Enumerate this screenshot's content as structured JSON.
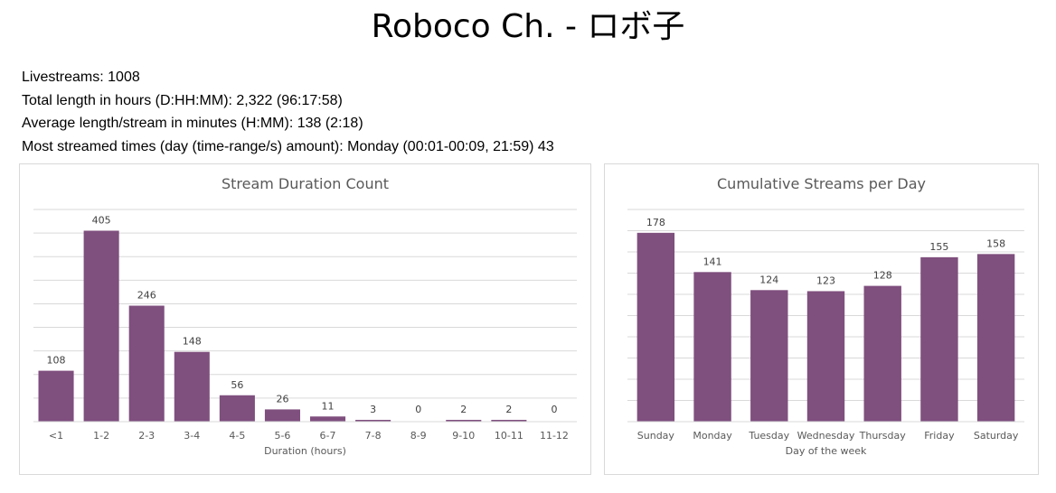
{
  "title": "Roboco Ch. - ロボ子",
  "stats": {
    "livestreams": "Livestreams: 1008",
    "total_length": "Total length in hours (D:HH:MM): 2,322 (96:17:58)",
    "average_length": "Average length/stream in minutes (H:MM): 138 (2:18)",
    "most_streamed": "Most streamed times (day (time-range/s) amount): Monday (00:01-00:09, 21:59) 43"
  },
  "colors": {
    "bar": "#7f4f7e",
    "grid": "#d9d9d9"
  },
  "chart_data": [
    {
      "type": "bar",
      "title": "Stream Duration Count",
      "xlabel": "Duration (hours)",
      "ylabel": "",
      "categories": [
        "<1",
        "1-2",
        "2-3",
        "3-4",
        "4-5",
        "5-6",
        "6-7",
        "7-8",
        "8-9",
        "9-10",
        "10-11",
        "11-12"
      ],
      "values": [
        108,
        405,
        246,
        148,
        56,
        26,
        11,
        3,
        0,
        2,
        2,
        0
      ],
      "ylim": [
        0,
        450
      ],
      "grid": true
    },
    {
      "type": "bar",
      "title": "Cumulative Streams per Day",
      "xlabel": "Day of the week",
      "ylabel": "",
      "categories": [
        "Sunday",
        "Monday",
        "Tuesday",
        "Wednesday",
        "Thursday",
        "Friday",
        "Saturday"
      ],
      "values": [
        178,
        141,
        124,
        123,
        128,
        155,
        158
      ],
      "ylim": [
        0,
        200
      ],
      "grid": true
    }
  ]
}
